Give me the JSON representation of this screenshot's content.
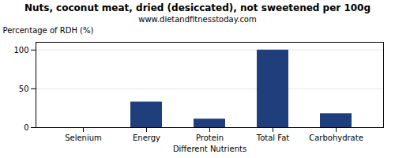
{
  "chart_data": {
    "type": "bar",
    "title": "Nuts, coconut meat, dried (desiccated), not sweetened per 100g",
    "subtitle": "www.dietandfitnesstoday.com",
    "xlabel": "Different Nutrients",
    "ylabel": "Percentage of RDH (%)",
    "categories": [
      "Selenium",
      "Energy",
      "Protein",
      "Total Fat",
      "Carbohydrate"
    ],
    "values": [
      0,
      33,
      11,
      100,
      18
    ],
    "color": "#1F3E7C",
    "ylim": [
      0,
      110
    ],
    "yticks": [
      0,
      50,
      100
    ],
    "grid": true
  }
}
